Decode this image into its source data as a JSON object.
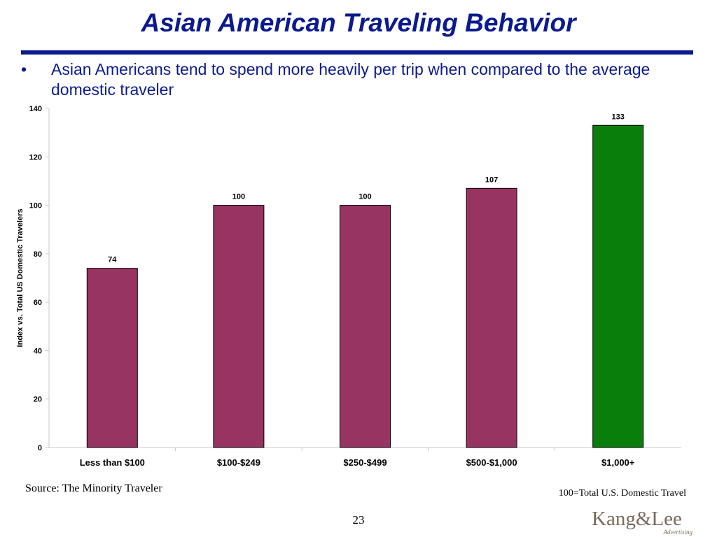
{
  "slide": {
    "title": "Asian American Traveling Behavior",
    "bullet_symbol": "•",
    "bullet": "Asian Americans tend to spend more heavily per trip when compared to the average domestic traveler",
    "source": "Source: The Minority Traveler",
    "footnote": "100=Total U.S. Domestic Travel",
    "page_number": "23",
    "logo_text": "Kang&Lee",
    "logo_subtext": "Advertising"
  },
  "colors": {
    "title": "#0b1a8f",
    "bar_default": "#983462",
    "bar_highlight": "#0a7e0a"
  },
  "chart_data": {
    "type": "bar",
    "categories": [
      "Less than $100",
      "$100-$249",
      "$250-$499",
      "$500-$1,000",
      "$1,000+"
    ],
    "values": [
      74,
      100,
      100,
      107,
      133
    ],
    "data_labels": [
      "74",
      "100",
      "100",
      "107",
      "133"
    ],
    "highlight_index": 4,
    "title": "",
    "xlabel": "",
    "ylabel": "Index vs. Total US Domestic Travelers",
    "ylim": [
      0,
      140
    ],
    "yticks": [
      0,
      20,
      40,
      60,
      80,
      100,
      120,
      140
    ],
    "grid": false,
    "legend": "none"
  }
}
